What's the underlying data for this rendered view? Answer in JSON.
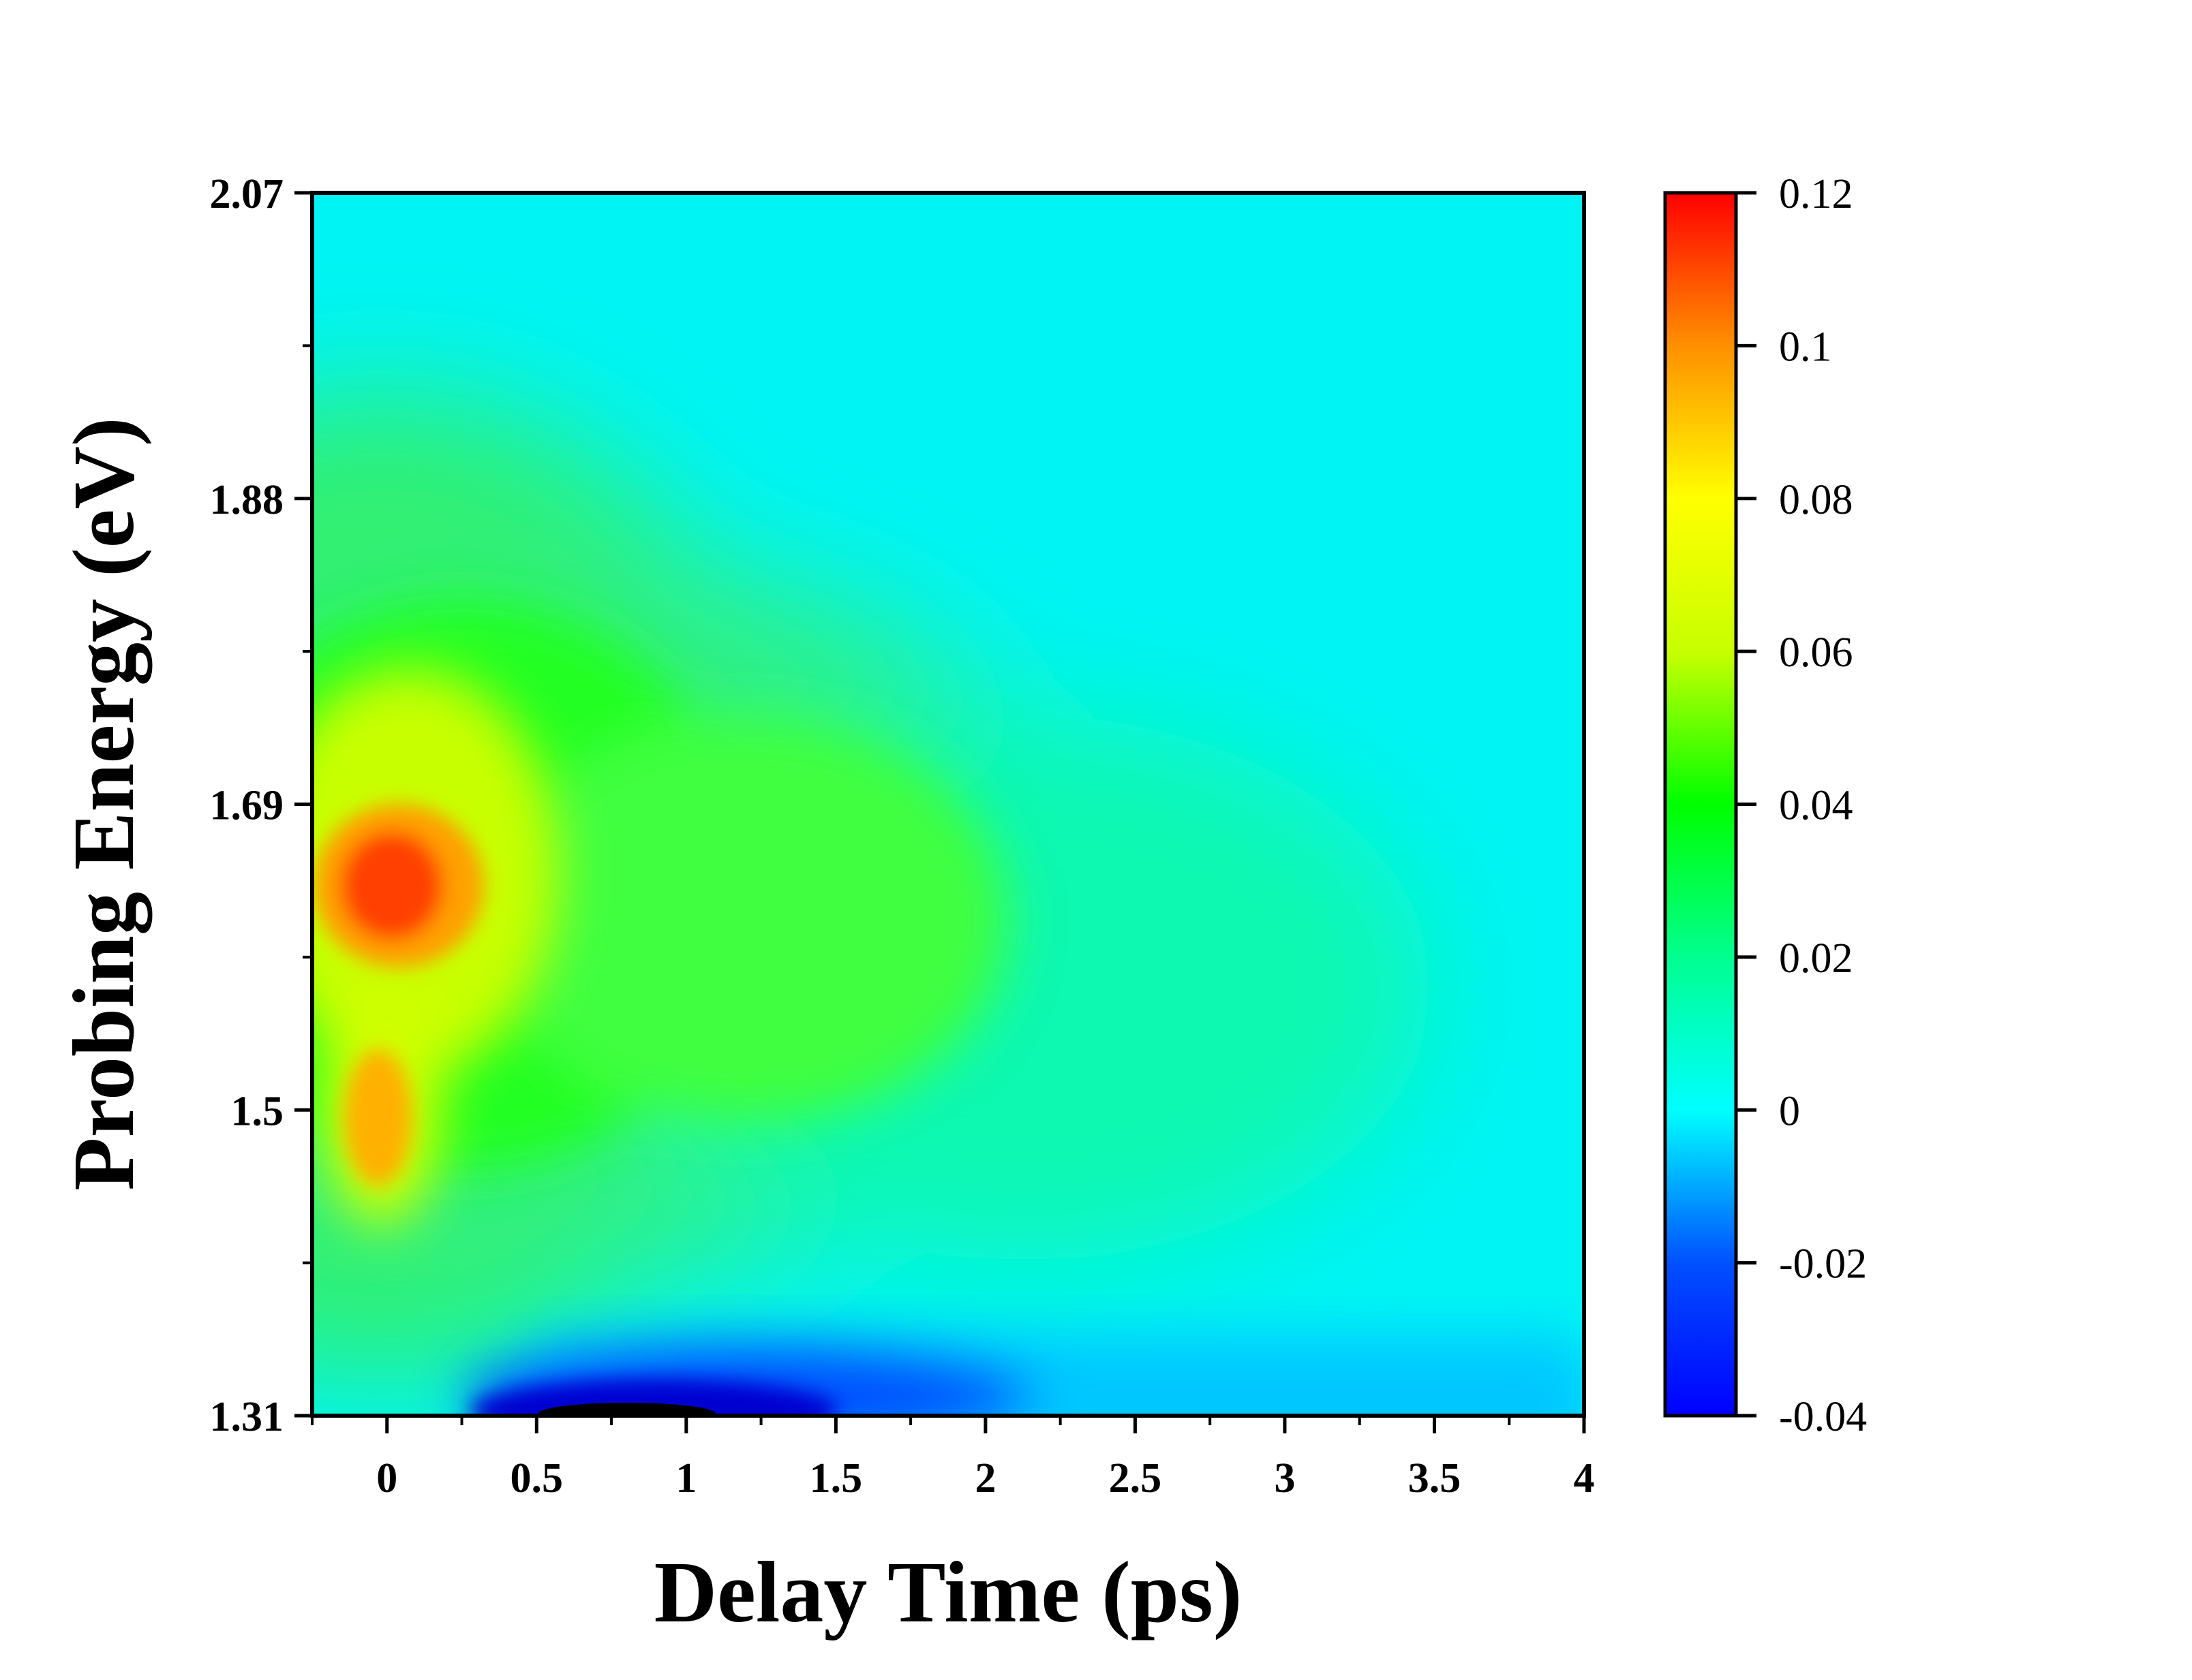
{
  "chart_data": {
    "type": "heatmap",
    "title": "",
    "xlabel": "Delay Time (ps)",
    "ylabel": "Probing Energy (eV)",
    "xlim": [
      -0.25,
      4.0
    ],
    "ylim": [
      1.31,
      2.07
    ],
    "x_ticks": [
      "0",
      "0.5",
      "1",
      "1.5",
      "2",
      "2.5",
      "3",
      "3.5",
      "4"
    ],
    "y_ticks": [
      "1.31",
      "1.5",
      "1.69",
      "1.88",
      "2.07"
    ],
    "colorbar": {
      "range": [
        -0.04,
        0.12
      ],
      "ticks": [
        "-0.04",
        "-0.02",
        "0",
        "0.02",
        "0.04",
        "0.06",
        "0.08",
        "0.1",
        "0.12"
      ],
      "colormap": [
        "#000000",
        "#0000ff",
        "#00a0ff",
        "#00ffff",
        "#00ff80",
        "#00ff00",
        "#ffff00",
        "#ffa000",
        "#ff0000"
      ]
    },
    "features": [
      {
        "x": 0.05,
        "y": 1.63,
        "value": 0.11
      },
      {
        "x": 0.0,
        "y": 1.47,
        "value": 0.095
      },
      {
        "x": 0.8,
        "y": 1.31,
        "value": -0.04
      }
    ],
    "grid": false
  }
}
